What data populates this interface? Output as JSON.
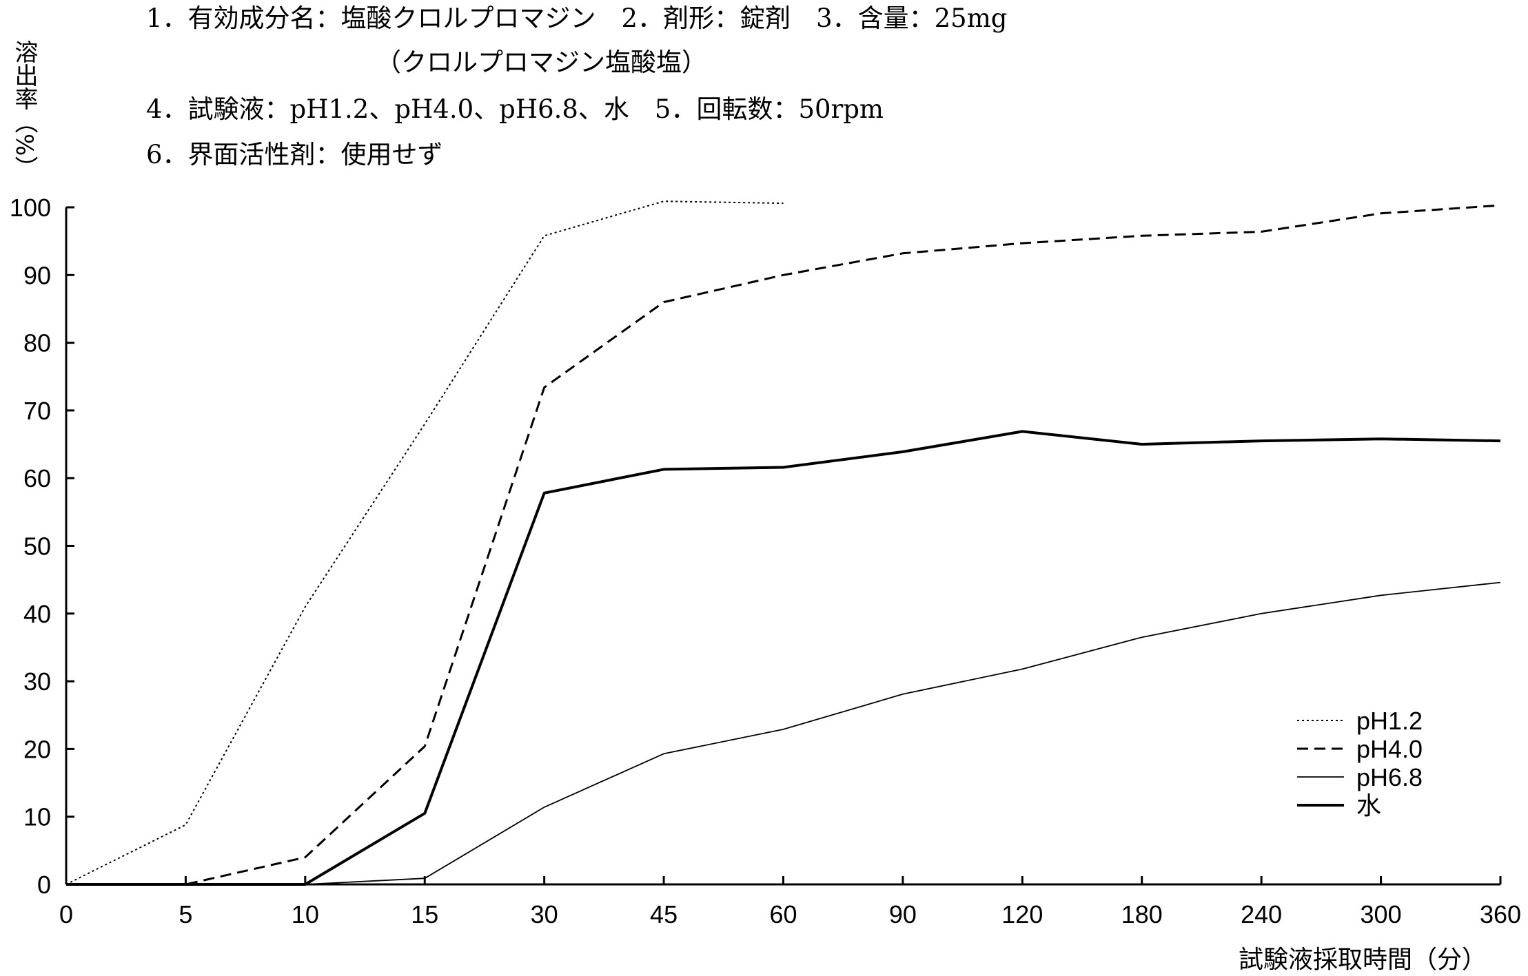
{
  "header": {
    "line1": "1．有効成分名：塩酸クロルプロマジン　2．剤形：錠剤　3．含量：25mg",
    "line2": "（クロルプロマジン塩酸塩）",
    "line3": "4．試験液：pH1.2、pH4.0、pH6.8、水　5．回転数：50rpm",
    "line4": "6．界面活性剤：使用せず"
  },
  "chart_data": {
    "type": "line",
    "title": "",
    "xlabel": "試験液採取時間（分）",
    "ylabel": "溶出率（%）",
    "categories": [
      "0",
      "5",
      "10",
      "15",
      "30",
      "45",
      "60",
      "90",
      "120",
      "180",
      "240",
      "300",
      "360"
    ],
    "ylim": [
      0,
      100
    ],
    "yticks": [
      "0",
      "10",
      "20",
      "30",
      "40",
      "50",
      "60",
      "70",
      "80",
      "90",
      "100"
    ],
    "grid": false,
    "legend_position": "bottom-right",
    "series": [
      {
        "name": "pH1.2",
        "style": "dotted",
        "values": [
          0,
          8.8,
          41,
          68,
          95.8,
          100.9,
          100.6,
          null,
          null,
          null,
          null,
          null,
          null
        ]
      },
      {
        "name": "pH4.0",
        "style": "dashed",
        "values": [
          0,
          0,
          4,
          20.4,
          73.4,
          86,
          90,
          93.2,
          94.7,
          95.8,
          96.4,
          99.1,
          100.3
        ]
      },
      {
        "name": "pH6.8",
        "style": "thin",
        "values": [
          0,
          0,
          0,
          0.9,
          11.4,
          19.3,
          22.9,
          28.1,
          31.8,
          36.5,
          40,
          42.7,
          44.6
        ]
      },
      {
        "name": "水",
        "style": "thick",
        "values": [
          0,
          0,
          0,
          10.5,
          57.8,
          61.3,
          61.6,
          63.9,
          66.9,
          65,
          65.5,
          65.8,
          65.5
        ]
      }
    ]
  }
}
